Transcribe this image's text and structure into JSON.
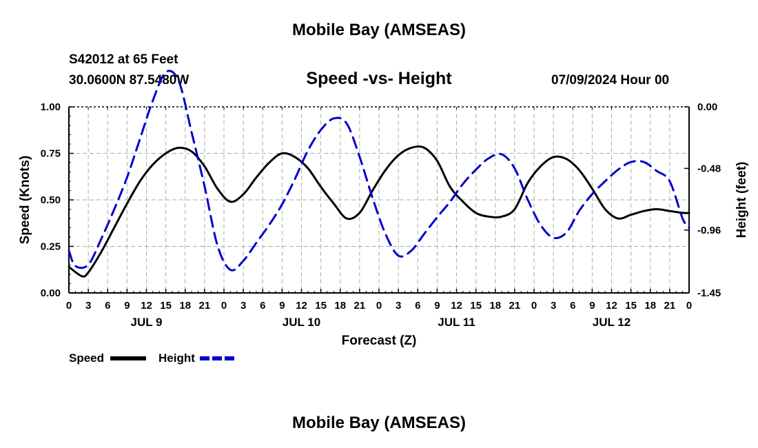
{
  "header": {
    "title": "Mobile Bay (AMSEAS)",
    "station": "S42012 at 65 Feet",
    "coords": "30.0600N  87.5480W",
    "run_time": "07/09/2024 Hour 00"
  },
  "footer": {
    "title": "Mobile Bay (AMSEAS)"
  },
  "colors": {
    "speed": "#000000",
    "height": "#0000cc",
    "grid": "#aaaaaa"
  },
  "chart_data": {
    "type": "line",
    "title": "Speed -vs- Height",
    "xlabel": "Forecast (Z)",
    "ylabel_left": "Speed (Knots)",
    "ylabel_right": "Height (feet)",
    "xlim": [
      0,
      96
    ],
    "ylim_left": [
      0,
      1.0
    ],
    "ylim_right": [
      -1.45,
      0.0
    ],
    "grid": true,
    "legend_position": "bottom-left",
    "x_tick_labels": [
      "0",
      "3",
      "6",
      "9",
      "12",
      "15",
      "18",
      "21",
      "0",
      "3",
      "6",
      "9",
      "12",
      "15",
      "18",
      "21",
      "0",
      "3",
      "6",
      "9",
      "12",
      "15",
      "18",
      "21",
      "0",
      "3",
      "6",
      "9",
      "12",
      "15",
      "18",
      "21",
      "0"
    ],
    "left_ticks": [
      {
        "value": 0.0,
        "label": "0.00"
      },
      {
        "value": 0.25,
        "label": "0.25"
      },
      {
        "value": 0.5,
        "label": "0.50"
      },
      {
        "value": 0.75,
        "label": "0.75"
      },
      {
        "value": 1.0,
        "label": "1.00"
      }
    ],
    "right_ticks": [
      {
        "value": 0.0,
        "label": "0.00"
      },
      {
        "value": -0.48,
        "label": "-0.48"
      },
      {
        "value": -0.96,
        "label": "-0.96"
      },
      {
        "value": -1.45,
        "label": "-1.45"
      }
    ],
    "day_labels": [
      {
        "label": "JUL 9",
        "hour": 12
      },
      {
        "label": "JUL 10",
        "hour": 36
      },
      {
        "label": "JUL 11",
        "hour": 60
      },
      {
        "label": "JUL 12",
        "hour": 84
      }
    ],
    "series": [
      {
        "name": "Speed",
        "axis": "left",
        "style": "solid",
        "x": [
          0,
          2,
          3,
          5,
          7,
          9,
          11,
          13,
          15,
          17,
          19,
          21,
          23,
          25,
          27,
          29,
          31,
          33,
          35,
          37,
          39,
          41,
          43,
          45,
          47,
          49,
          51,
          53,
          55,
          57,
          59,
          61,
          63,
          65,
          67,
          69,
          71,
          73,
          75,
          77,
          79,
          81,
          83,
          85,
          87,
          89,
          91,
          93,
          95,
          96
        ],
        "values": [
          0.14,
          0.09,
          0.11,
          0.22,
          0.35,
          0.48,
          0.6,
          0.69,
          0.75,
          0.78,
          0.76,
          0.68,
          0.56,
          0.49,
          0.53,
          0.62,
          0.7,
          0.75,
          0.73,
          0.67,
          0.57,
          0.48,
          0.4,
          0.43,
          0.55,
          0.66,
          0.74,
          0.78,
          0.78,
          0.71,
          0.57,
          0.49,
          0.43,
          0.41,
          0.41,
          0.45,
          0.59,
          0.68,
          0.73,
          0.72,
          0.66,
          0.56,
          0.45,
          0.4,
          0.42,
          0.44,
          0.45,
          0.44,
          0.43,
          0.43
        ]
      },
      {
        "name": "Height",
        "axis": "right",
        "style": "dashed",
        "x": [
          0,
          1,
          3,
          5,
          7,
          9,
          11,
          13,
          15,
          17,
          19,
          21,
          23,
          25,
          27,
          29,
          31,
          33,
          35,
          37,
          39,
          41,
          43,
          45,
          47,
          49,
          51,
          53,
          55,
          57,
          59,
          61,
          63,
          65,
          67,
          69,
          71,
          73,
          75,
          77,
          79,
          81,
          83,
          85,
          87,
          89,
          91,
          93,
          95,
          96
        ],
        "values": [
          -1.12,
          -1.24,
          -1.23,
          -1.03,
          -0.8,
          -0.55,
          -0.25,
          0.05,
          0.27,
          0.2,
          -0.2,
          -0.62,
          -1.08,
          -1.27,
          -1.2,
          -1.06,
          -0.92,
          -0.76,
          -0.56,
          -0.34,
          -0.18,
          -0.09,
          -0.13,
          -0.39,
          -0.71,
          -0.99,
          -1.16,
          -1.12,
          -0.99,
          -0.86,
          -0.74,
          -0.6,
          -0.49,
          -0.4,
          -0.37,
          -0.48,
          -0.72,
          -0.92,
          -1.02,
          -0.98,
          -0.81,
          -0.68,
          -0.58,
          -0.49,
          -0.43,
          -0.43,
          -0.5,
          -0.58,
          -0.87,
          -0.94
        ]
      }
    ]
  },
  "legend": {
    "items": [
      {
        "label": "Speed"
      },
      {
        "label": "Height"
      }
    ]
  }
}
